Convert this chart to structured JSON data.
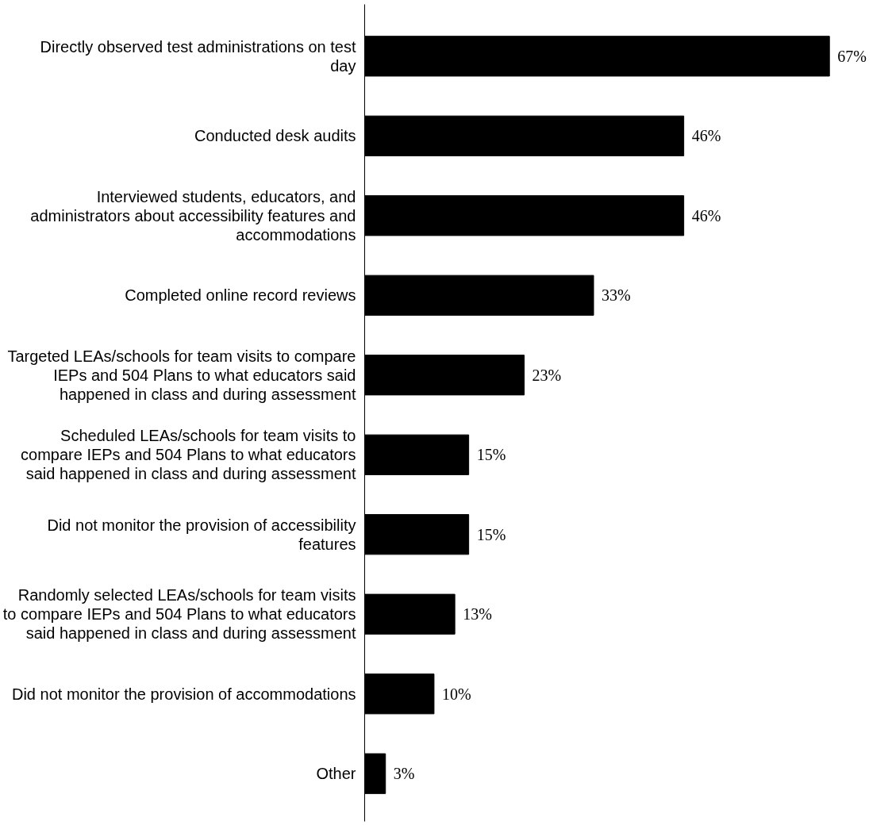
{
  "chart_data": {
    "type": "bar",
    "orientation": "horizontal",
    "categories": [
      "Directly observed test administrations on test day",
      "Conducted desk audits",
      "Interviewed students, educators, and administrators about accessibility features and accommodations",
      "Completed online record reviews",
      "Targeted LEAs/schools for team visits to compare IEPs and 504 Plans to what educators said happened in class and during assessment",
      "Scheduled LEAs/schools for team visits to compare IEPs and 504 Plans to what educators said happened in class and during assessment",
      "Did not monitor the provision of accessibility features",
      "Randomly selected LEAs/schools for team visits to compare IEPs and 504 Plans to what educators said happened in class and during assessment",
      "Did not monitor the provision of accommodations",
      "Other"
    ],
    "values": [
      67,
      46,
      46,
      33,
      23,
      15,
      15,
      13,
      10,
      3
    ],
    "value_labels": [
      "67%",
      "46%",
      "46%",
      "33%",
      "23%",
      "15%",
      "15%",
      "13%",
      "10%",
      "3%"
    ],
    "color": "#000000",
    "tick_labels": "y"
  }
}
